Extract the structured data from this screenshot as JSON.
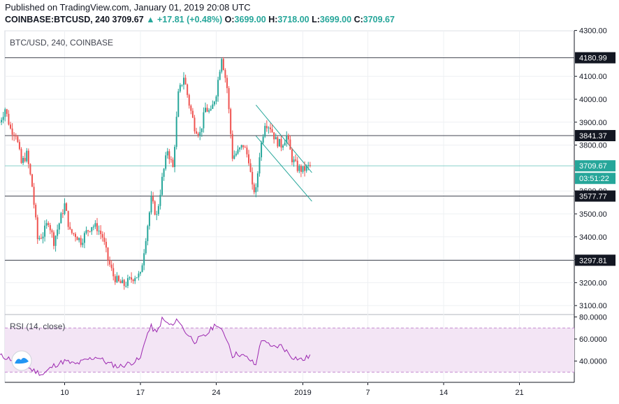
{
  "header": {
    "published": "Published on TradingView.com, January 01, 2019 20:08 UTC",
    "symbol": "COINBASE:BTCUSD, 240",
    "last": "3709.67",
    "change_arrow": "▲",
    "change": "+17.81 (+0.48%)",
    "open_label": "O:",
    "open": "3699.00",
    "high_label": "H:",
    "high": "3718.00",
    "low_label": "L:",
    "low": "3699.00",
    "close_label": "C:",
    "close": "3709.67"
  },
  "colors": {
    "up": "#26a69a",
    "down": "#ef5350",
    "rsi_line": "#9c27b0",
    "rsi_band": "#f3e5f5",
    "level_line": "#434651",
    "last_price_line": "#87d1cb",
    "trend_channel": "#26a69a",
    "grid": "#eef0f3"
  },
  "chart_data": {
    "type": "candlestick",
    "title": "BTC/USD, 240, COINBASE",
    "x_ticks": [
      "10",
      "17",
      "24",
      "2019",
      "7",
      "14",
      "21"
    ],
    "y_ticks": [
      "3100.00",
      "3200.00",
      "3300.00",
      "3400.00",
      "3500.00",
      "3600.00",
      "3800.00",
      "3900.00",
      "4000.00",
      "4100.00",
      "4300.00"
    ],
    "ylim": [
      3050,
      4310
    ],
    "grid": true,
    "horizontal_levels": [
      4180.99,
      3841.37,
      3577.77,
      3297.81
    ],
    "last_price": {
      "value": "3709.67",
      "countdown": "03:51:22"
    },
    "trend_channel": {
      "upper": [
        {
          "date": "2018-12-27 16:00",
          "price": 3975
        },
        {
          "date": "2019-01-01 20:00",
          "price": 3680
        }
      ],
      "lower": [
        {
          "date": "2018-12-27 16:00",
          "price": 3840
        },
        {
          "date": "2019-01-01 20:00",
          "price": 3555
        }
      ]
    },
    "price_path": [
      {
        "date": "2018-12-04",
        "price": 3900
      },
      {
        "date": "2018-12-04 12:00",
        "price": 3960
      },
      {
        "date": "2018-12-05",
        "price": 3870
      },
      {
        "date": "2018-12-05 12:00",
        "price": 3850
      },
      {
        "date": "2018-12-06",
        "price": 3720
      },
      {
        "date": "2018-12-06 12:00",
        "price": 3760
      },
      {
        "date": "2018-12-07",
        "price": 3620
      },
      {
        "date": "2018-12-07 12:00",
        "price": 3390
      },
      {
        "date": "2018-12-08",
        "price": 3410
      },
      {
        "date": "2018-12-08 12:00",
        "price": 3470
      },
      {
        "date": "2018-12-09",
        "price": 3380
      },
      {
        "date": "2018-12-09 12:00",
        "price": 3460
      },
      {
        "date": "2018-12-10",
        "price": 3540
      },
      {
        "date": "2018-12-10 12:00",
        "price": 3420
      },
      {
        "date": "2018-12-11",
        "price": 3410
      },
      {
        "date": "2018-12-11 12:00",
        "price": 3380
      },
      {
        "date": "2018-12-12",
        "price": 3420
      },
      {
        "date": "2018-12-12 12:00",
        "price": 3450
      },
      {
        "date": "2018-12-13",
        "price": 3440
      },
      {
        "date": "2018-12-13 12:00",
        "price": 3400
      },
      {
        "date": "2018-12-14",
        "price": 3300
      },
      {
        "date": "2018-12-14 12:00",
        "price": 3230
      },
      {
        "date": "2018-12-15",
        "price": 3200
      },
      {
        "date": "2018-12-15 12:00",
        "price": 3190
      },
      {
        "date": "2018-12-16",
        "price": 3210
      },
      {
        "date": "2018-12-16 12:00",
        "price": 3230
      },
      {
        "date": "2018-12-17",
        "price": 3230
      },
      {
        "date": "2018-12-17 12:00",
        "price": 3400
      },
      {
        "date": "2018-12-18",
        "price": 3560
      },
      {
        "date": "2018-12-18 12:00",
        "price": 3490
      },
      {
        "date": "2018-12-19",
        "price": 3650
      },
      {
        "date": "2018-12-19 12:00",
        "price": 3780
      },
      {
        "date": "2018-12-20",
        "price": 3700
      },
      {
        "date": "2018-12-20 12:00",
        "price": 4020
      },
      {
        "date": "2018-12-21",
        "price": 4100
      },
      {
        "date": "2018-12-21 12:00",
        "price": 3980
      },
      {
        "date": "2018-12-22",
        "price": 3880
      },
      {
        "date": "2018-12-22 12:00",
        "price": 3850
      },
      {
        "date": "2018-12-23",
        "price": 3960
      },
      {
        "date": "2018-12-23 12:00",
        "price": 3940
      },
      {
        "date": "2018-12-24",
        "price": 4030
      },
      {
        "date": "2018-12-24 12:00",
        "price": 4190
      },
      {
        "date": "2018-12-25",
        "price": 4050
      },
      {
        "date": "2018-12-25 12:00",
        "price": 3750
      },
      {
        "date": "2018-12-26",
        "price": 3770
      },
      {
        "date": "2018-12-26 12:00",
        "price": 3800
      },
      {
        "date": "2018-12-27",
        "price": 3740
      },
      {
        "date": "2018-12-27 08:00",
        "price": 3610
      },
      {
        "date": "2018-12-27 16:00",
        "price": 3600
      },
      {
        "date": "2018-12-28",
        "price": 3760
      },
      {
        "date": "2018-12-28 12:00",
        "price": 3900
      },
      {
        "date": "2018-12-29",
        "price": 3880
      },
      {
        "date": "2018-12-29 12:00",
        "price": 3820
      },
      {
        "date": "2018-12-30",
        "price": 3800
      },
      {
        "date": "2018-12-30 12:00",
        "price": 3840
      },
      {
        "date": "2018-12-31",
        "price": 3740
      },
      {
        "date": "2018-12-31 12:00",
        "price": 3700
      },
      {
        "date": "2019-01-01",
        "price": 3690
      },
      {
        "date": "2019-01-01 08:00",
        "price": 3700
      },
      {
        "date": "2019-01-01 16:00",
        "price": 3709.67
      }
    ]
  },
  "rsi_data": {
    "label": "RSI (14, close)",
    "y_ticks": [
      "80.0000",
      "60.0000",
      "40.0000"
    ],
    "ylim": [
      24,
      82
    ],
    "band": [
      30,
      70
    ],
    "values": [
      {
        "date": "2018-12-04",
        "value": 45
      },
      {
        "date": "2018-12-05",
        "value": 42
      },
      {
        "date": "2018-12-06",
        "value": 38
      },
      {
        "date": "2018-12-07",
        "value": 32
      },
      {
        "date": "2018-12-08",
        "value": 28
      },
      {
        "date": "2018-12-09",
        "value": 36
      },
      {
        "date": "2018-12-10",
        "value": 40
      },
      {
        "date": "2018-12-11",
        "value": 37
      },
      {
        "date": "2018-12-12",
        "value": 41
      },
      {
        "date": "2018-12-13",
        "value": 44
      },
      {
        "date": "2018-12-14",
        "value": 38
      },
      {
        "date": "2018-12-15",
        "value": 35
      },
      {
        "date": "2018-12-16",
        "value": 38
      },
      {
        "date": "2018-12-17",
        "value": 42
      },
      {
        "date": "2018-12-17 12:00",
        "value": 62
      },
      {
        "date": "2018-12-18",
        "value": 71
      },
      {
        "date": "2018-12-18 12:00",
        "value": 65
      },
      {
        "date": "2018-12-19",
        "value": 78
      },
      {
        "date": "2018-12-19 12:00",
        "value": 74
      },
      {
        "date": "2018-12-20",
        "value": 72
      },
      {
        "date": "2018-12-20 12:00",
        "value": 78
      },
      {
        "date": "2018-12-21",
        "value": 68
      },
      {
        "date": "2018-12-22",
        "value": 58
      },
      {
        "date": "2018-12-23",
        "value": 63
      },
      {
        "date": "2018-12-24",
        "value": 74
      },
      {
        "date": "2018-12-25",
        "value": 60
      },
      {
        "date": "2018-12-25 12:00",
        "value": 45
      },
      {
        "date": "2018-12-26",
        "value": 47
      },
      {
        "date": "2018-12-27",
        "value": 42
      },
      {
        "date": "2018-12-27 16:00",
        "value": 36
      },
      {
        "date": "2018-12-28",
        "value": 55
      },
      {
        "date": "2018-12-28 12:00",
        "value": 60
      },
      {
        "date": "2018-12-29",
        "value": 52
      },
      {
        "date": "2018-12-30",
        "value": 54
      },
      {
        "date": "2018-12-31",
        "value": 44
      },
      {
        "date": "2019-01-01",
        "value": 41
      },
      {
        "date": "2019-01-01 16:00",
        "value": 45
      }
    ]
  }
}
